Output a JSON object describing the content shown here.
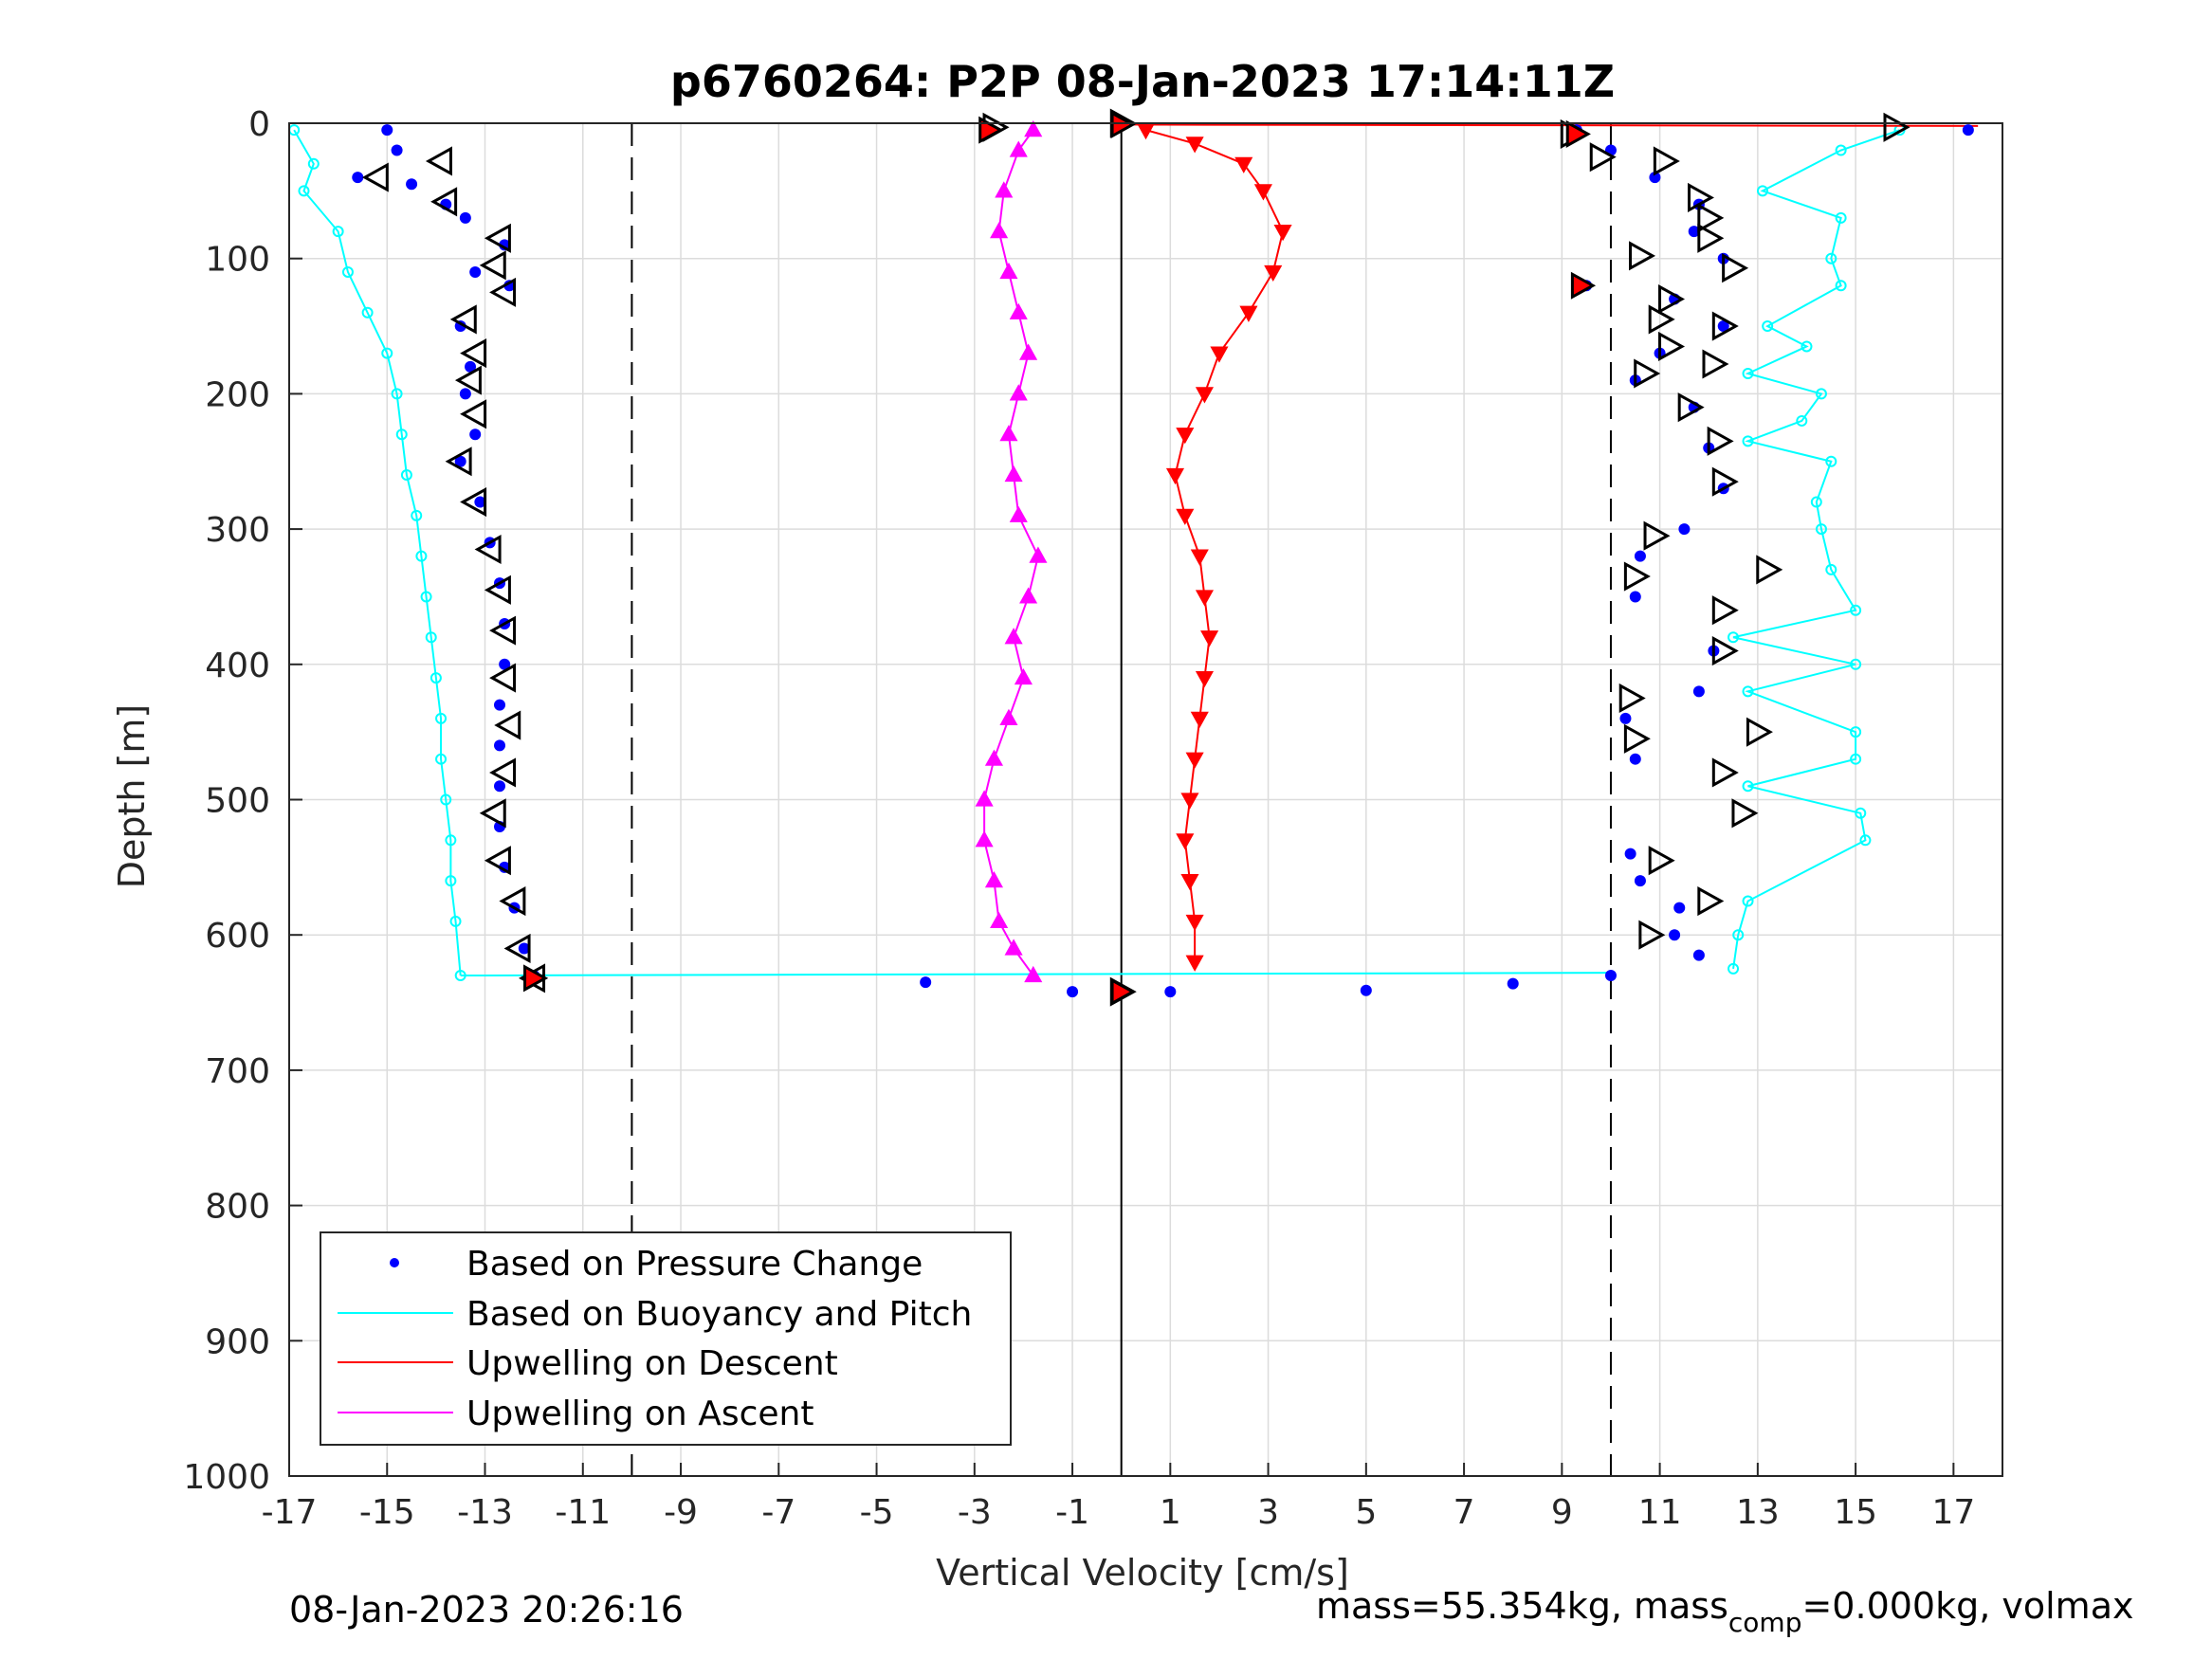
{
  "header": {
    "title": "p6760264: P2P 08-Jan-2023 17:14:11Z"
  },
  "footer": {
    "left": "08-Jan-2023 20:26:16",
    "right_prefix": "mass=55.354kg, mass",
    "right_sub": "comp",
    "right_suffix": "=0.000kg, volmax"
  },
  "colors": {
    "pressure": "#0000ff",
    "buoyancy": "#00ffff",
    "descent": "#ff0000",
    "ascent": "#ff00ff",
    "marker_edge": "#000000",
    "grid": "#dcdcdc"
  },
  "chart_data": {
    "type": "scatter",
    "title": "p6760264: P2P 08-Jan-2023 17:14:11Z",
    "xlabel": "Vertical Velocity [cm/s]",
    "ylabel": "Depth [m]",
    "xlim": [
      -17,
      18
    ],
    "ylim": [
      0,
      1000
    ],
    "y_reversed": true,
    "xticks": [
      -17,
      -15,
      -13,
      -11,
      -9,
      -7,
      -5,
      -3,
      -1,
      1,
      3,
      5,
      7,
      9,
      11,
      13,
      15,
      17
    ],
    "yticks": [
      0,
      100,
      200,
      300,
      400,
      500,
      600,
      700,
      800,
      900,
      1000
    ],
    "grid": true,
    "legend_position": "bottom-left",
    "reference_lines": {
      "solid_x": [
        0
      ],
      "dashed_x": [
        -10,
        10
      ]
    },
    "series": [
      {
        "name": "Based on Pressure Change",
        "style": "dots",
        "dive_points": [
          [
            -15,
            5
          ],
          [
            -14.8,
            20
          ],
          [
            -15.6,
            40
          ],
          [
            -14.5,
            45
          ],
          [
            -13.8,
            60
          ],
          [
            -13.4,
            70
          ],
          [
            -12.6,
            90
          ],
          [
            -13.2,
            110
          ],
          [
            -12.5,
            120
          ],
          [
            -13.5,
            150
          ],
          [
            -13.3,
            180
          ],
          [
            -13.4,
            200
          ],
          [
            -13.2,
            230
          ],
          [
            -13.5,
            250
          ],
          [
            -13.1,
            280
          ],
          [
            -12.9,
            310
          ],
          [
            -12.7,
            340
          ],
          [
            -12.6,
            370
          ],
          [
            -12.6,
            400
          ],
          [
            -12.7,
            430
          ],
          [
            -12.7,
            460
          ],
          [
            -12.7,
            490
          ],
          [
            -12.7,
            520
          ],
          [
            -12.6,
            550
          ],
          [
            -12.4,
            580
          ],
          [
            -12.2,
            610
          ],
          [
            -12,
            630
          ]
        ],
        "climb_points": [
          [
            -4,
            635
          ],
          [
            -1,
            642
          ],
          [
            0,
            642
          ],
          [
            1,
            642
          ],
          [
            5,
            641
          ],
          [
            8,
            636
          ],
          [
            10,
            630
          ],
          [
            11.8,
            615
          ],
          [
            11.3,
            600
          ],
          [
            11.4,
            580
          ],
          [
            10.6,
            560
          ],
          [
            10.4,
            540
          ],
          [
            10.5,
            470
          ],
          [
            10.3,
            440
          ],
          [
            11.8,
            420
          ],
          [
            12.1,
            390
          ],
          [
            10.5,
            350
          ],
          [
            10.6,
            320
          ],
          [
            11.5,
            300
          ],
          [
            12.3,
            270
          ],
          [
            12,
            240
          ],
          [
            11.7,
            210
          ],
          [
            10.5,
            190
          ],
          [
            11,
            170
          ],
          [
            12.3,
            150
          ],
          [
            11.3,
            130
          ],
          [
            9.5,
            120
          ],
          [
            12.3,
            100
          ],
          [
            11.7,
            80
          ],
          [
            11.8,
            60
          ],
          [
            10.9,
            40
          ],
          [
            10,
            20
          ],
          [
            9.3,
            5
          ],
          [
            17.3,
            5
          ]
        ]
      },
      {
        "name": "Based on Buoyancy and Pitch",
        "style": "line-with-circles",
        "dive_points": [
          [
            -16.9,
            5
          ],
          [
            -16.5,
            30
          ],
          [
            -16.7,
            50
          ],
          [
            -16,
            80
          ],
          [
            -15.8,
            110
          ],
          [
            -15.4,
            140
          ],
          [
            -15,
            170
          ],
          [
            -14.8,
            200
          ],
          [
            -14.7,
            230
          ],
          [
            -14.6,
            260
          ],
          [
            -14.4,
            290
          ],
          [
            -14.3,
            320
          ],
          [
            -14.2,
            350
          ],
          [
            -14.1,
            380
          ],
          [
            -14,
            410
          ],
          [
            -13.9,
            440
          ],
          [
            -13.9,
            470
          ],
          [
            -13.8,
            500
          ],
          [
            -13.7,
            530
          ],
          [
            -13.7,
            560
          ],
          [
            -13.6,
            590
          ],
          [
            -13.5,
            630
          ]
        ],
        "climb_points": [
          [
            12.5,
            625
          ],
          [
            12.6,
            600
          ],
          [
            12.8,
            575
          ],
          [
            15.2,
            530
          ],
          [
            15.1,
            510
          ],
          [
            12.8,
            490
          ],
          [
            15,
            470
          ],
          [
            15,
            450
          ],
          [
            12.8,
            420
          ],
          [
            15,
            400
          ],
          [
            12.5,
            380
          ],
          [
            15,
            360
          ],
          [
            14.5,
            330
          ],
          [
            14.3,
            300
          ],
          [
            14.2,
            280
          ],
          [
            14.5,
            250
          ],
          [
            12.8,
            235
          ],
          [
            13.9,
            220
          ],
          [
            14.3,
            200
          ],
          [
            12.8,
            185
          ],
          [
            14,
            165
          ],
          [
            13.2,
            150
          ],
          [
            14.7,
            120
          ],
          [
            14.5,
            100
          ],
          [
            14.7,
            70
          ],
          [
            13.1,
            50
          ],
          [
            14.7,
            20
          ],
          [
            15.9,
            5
          ]
        ]
      },
      {
        "name": "Upwelling on Descent",
        "style": "line-with-down-triangles",
        "points": [
          [
            0.5,
            5
          ],
          [
            1.5,
            15
          ],
          [
            2.5,
            30
          ],
          [
            2.9,
            50
          ],
          [
            3.3,
            80
          ],
          [
            3.1,
            110
          ],
          [
            2.6,
            140
          ],
          [
            2,
            170
          ],
          [
            1.7,
            200
          ],
          [
            1.3,
            230
          ],
          [
            1.1,
            260
          ],
          [
            1.3,
            290
          ],
          [
            1.6,
            320
          ],
          [
            1.7,
            350
          ],
          [
            1.8,
            380
          ],
          [
            1.7,
            410
          ],
          [
            1.6,
            440
          ],
          [
            1.5,
            470
          ],
          [
            1.4,
            500
          ],
          [
            1.3,
            530
          ],
          [
            1.4,
            560
          ],
          [
            1.5,
            590
          ],
          [
            1.5,
            620
          ]
        ]
      },
      {
        "name": "Upwelling on Ascent",
        "style": "line-with-up-triangles",
        "points": [
          [
            -1.8,
            630
          ],
          [
            -2.2,
            610
          ],
          [
            -2.5,
            590
          ],
          [
            -2.6,
            560
          ],
          [
            -2.8,
            530
          ],
          [
            -2.8,
            500
          ],
          [
            -2.6,
            470
          ],
          [
            -2.3,
            440
          ],
          [
            -2,
            410
          ],
          [
            -2.2,
            380
          ],
          [
            -1.9,
            350
          ],
          [
            -1.7,
            320
          ],
          [
            -2.1,
            290
          ],
          [
            -2.2,
            260
          ],
          [
            -2.3,
            230
          ],
          [
            -2.1,
            200
          ],
          [
            -1.9,
            170
          ],
          [
            -2.1,
            140
          ],
          [
            -2.3,
            110
          ],
          [
            -2.5,
            80
          ],
          [
            -2.4,
            50
          ],
          [
            -2.1,
            20
          ],
          [
            -1.8,
            5
          ]
        ]
      }
    ],
    "markers": {
      "dive": [
        [
          -15.2,
          40
        ],
        [
          -13.9,
          28
        ],
        [
          -13.8,
          58
        ],
        [
          -12.7,
          85
        ],
        [
          -12.8,
          105
        ],
        [
          -12.6,
          125
        ],
        [
          -13.4,
          145
        ],
        [
          -13.2,
          170
        ],
        [
          -13.3,
          190
        ],
        [
          -13.2,
          215
        ],
        [
          -13.5,
          250
        ],
        [
          -13.2,
          280
        ],
        [
          -12.9,
          315
        ],
        [
          -12.7,
          345
        ],
        [
          -12.6,
          375
        ],
        [
          -12.6,
          410
        ],
        [
          -12.5,
          445
        ],
        [
          -12.6,
          480
        ],
        [
          -12.8,
          510
        ],
        [
          -12.7,
          545
        ],
        [
          -12.4,
          575
        ],
        [
          -12.3,
          610
        ],
        [
          -12,
          632
        ]
      ],
      "climb": [
        [
          9.2,
          8
        ],
        [
          9.8,
          25
        ],
        [
          11.1,
          28
        ],
        [
          10.6,
          98
        ],
        [
          11.8,
          55
        ],
        [
          12,
          70
        ],
        [
          12,
          85
        ],
        [
          12.5,
          107
        ],
        [
          11.2,
          130
        ],
        [
          11,
          145
        ],
        [
          12.3,
          150
        ],
        [
          11.2,
          165
        ],
        [
          10.7,
          185
        ],
        [
          12.1,
          178
        ],
        [
          11.6,
          210
        ],
        [
          12.2,
          235
        ],
        [
          12.3,
          265
        ],
        [
          10.9,
          305
        ],
        [
          10.5,
          335
        ],
        [
          13.2,
          330
        ],
        [
          12.3,
          360
        ],
        [
          12.3,
          390
        ],
        [
          10.4,
          425
        ],
        [
          10.5,
          455
        ],
        [
          13,
          450
        ],
        [
          12.3,
          480
        ],
        [
          12.7,
          510
        ],
        [
          11,
          545
        ],
        [
          12,
          575
        ],
        [
          10.8,
          600
        ],
        [
          0,
          642
        ]
      ],
      "surface": [
        [
          -2.6,
          3
        ],
        [
          0,
          0
        ],
        [
          15.8,
          3
        ]
      ],
      "red_markers": [
        [
          -2.7,
          5
        ],
        [
          0,
          1
        ],
        [
          9.3,
          8
        ],
        [
          9.4,
          120
        ],
        [
          -12,
          632
        ],
        [
          0,
          642
        ]
      ]
    }
  }
}
